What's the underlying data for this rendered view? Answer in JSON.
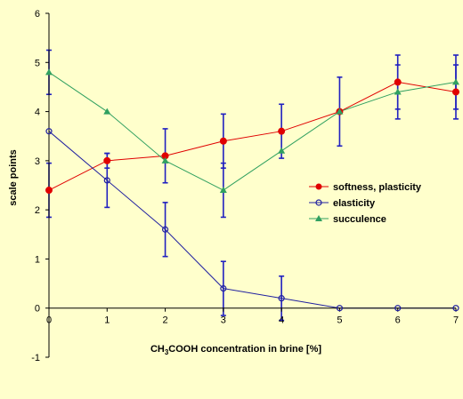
{
  "chart_data": {
    "type": "line",
    "title": "",
    "ylabel": "scale points",
    "xlabel_parts": [
      "CH",
      "3",
      "COOH concentration in brine [%]"
    ],
    "x": [
      0,
      1,
      2,
      3,
      4,
      5,
      6,
      7
    ],
    "xlim": [
      0,
      7
    ],
    "ylim": [
      -1,
      6
    ],
    "yticks": [
      -1,
      0,
      1,
      2,
      3,
      4,
      5,
      6
    ],
    "xticks": [
      0,
      1,
      2,
      3,
      4,
      5,
      6,
      7
    ],
    "grid": false,
    "legend_position": "right",
    "background": "#ffffcc",
    "errorbar_color": "#2020c0",
    "series": [
      {
        "name": "softness, plasticity",
        "color": "#e00000",
        "marker": "filled-circle",
        "values": [
          2.4,
          3.0,
          3.1,
          3.4,
          3.6,
          4.0,
          4.6,
          4.4
        ],
        "errors": [
          0.55,
          0.15,
          0.55,
          0.55,
          0.55,
          0.7,
          0.55,
          0.55
        ]
      },
      {
        "name": "elasticity",
        "color": "#2020a0",
        "marker": "open-circle",
        "values": [
          3.6,
          2.6,
          1.6,
          0.4,
          0.2,
          0.0,
          0.0,
          0.0
        ],
        "errors": [
          0.0,
          0.55,
          0.55,
          0.55,
          0.45,
          0.0,
          0.0,
          0.0
        ]
      },
      {
        "name": "succulence",
        "color": "#30a060",
        "marker": "filled-triangle",
        "values": [
          4.8,
          4.0,
          3.0,
          2.4,
          3.2,
          4.0,
          4.4,
          4.6
        ],
        "errors": [
          0.45,
          0.0,
          0.0,
          0.55,
          0.0,
          0.0,
          0.55,
          0.55
        ]
      }
    ]
  }
}
